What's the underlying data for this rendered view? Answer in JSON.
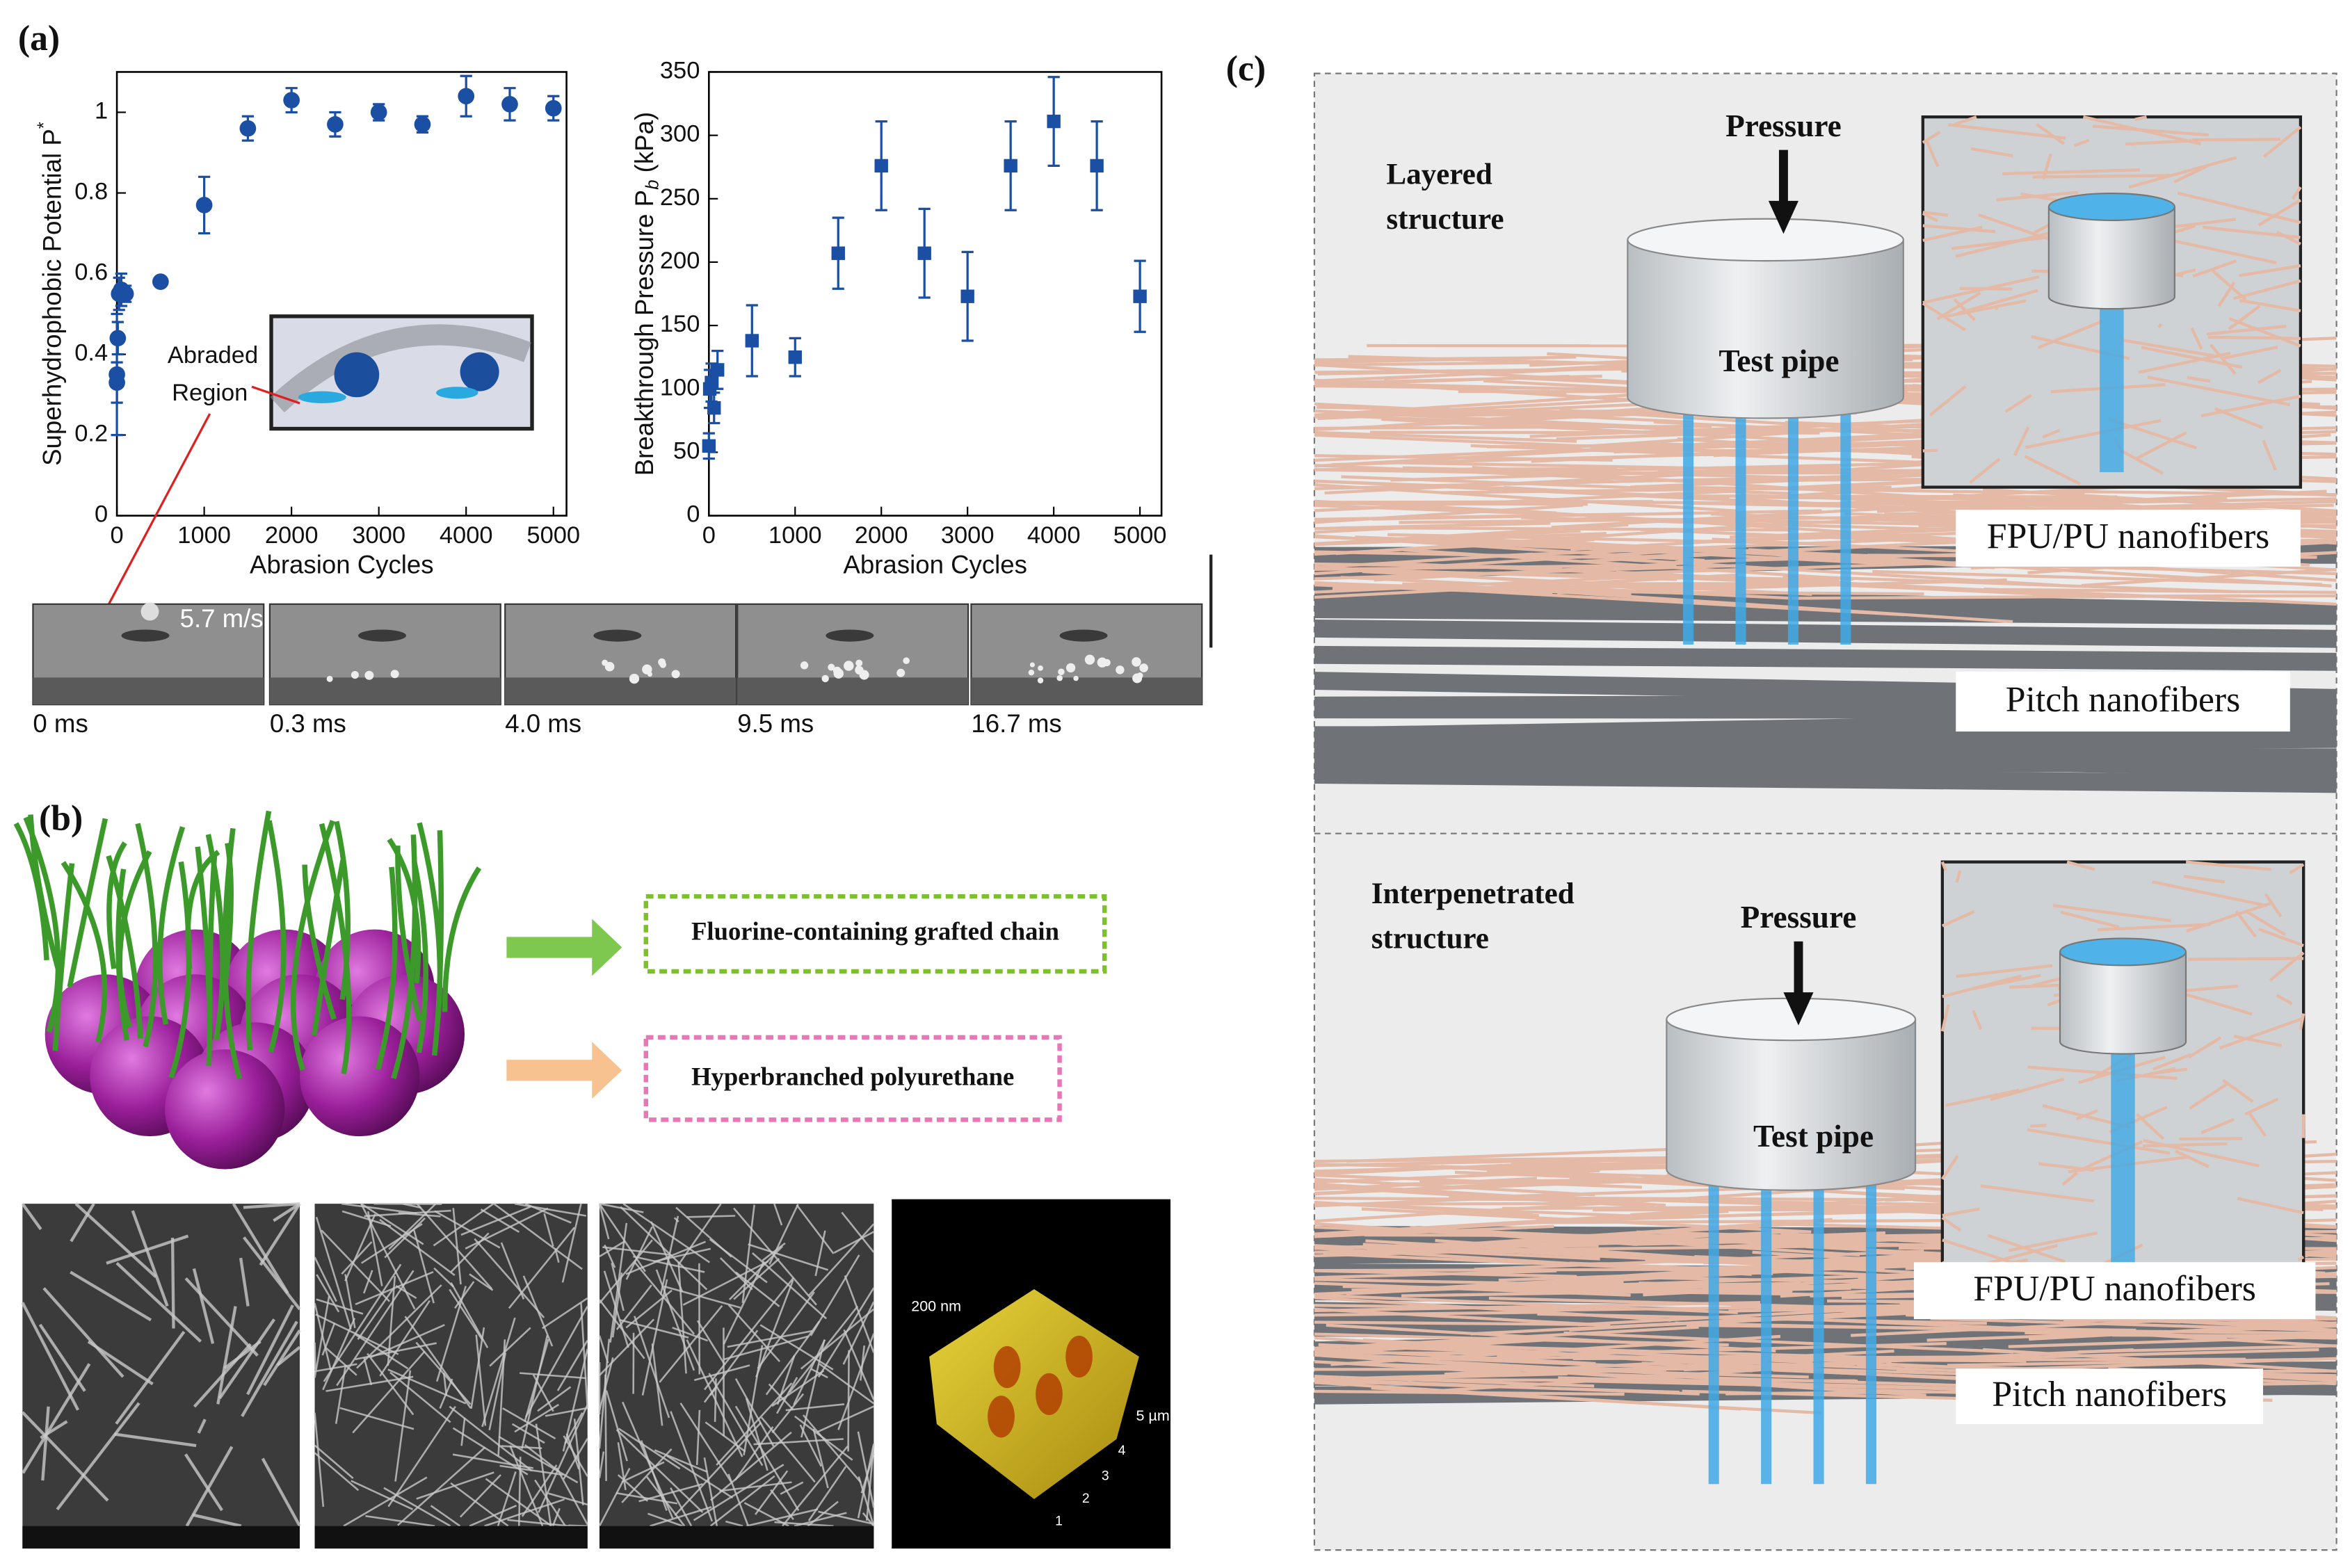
{
  "panels": {
    "a": "(a)",
    "b": "(b)",
    "c": "(c)"
  },
  "chart_data": [
    {
      "type": "scatter",
      "y_label": "Superhydrophobic Potential P",
      "y_label_sup": "*",
      "x_label": "Abrasion Cycles",
      "x": [
        0,
        0,
        10,
        25,
        50,
        100,
        500,
        1000,
        1500,
        2000,
        2500,
        3000,
        3500,
        4000,
        4500,
        5000
      ],
      "values": [
        0.35,
        0.33,
        0.44,
        0.55,
        0.56,
        0.55,
        0.58,
        0.77,
        0.96,
        1.03,
        0.97,
        1.0,
        0.97,
        1.04,
        1.02,
        1.01
      ],
      "errors": [
        0.15,
        0.05,
        0.04,
        0.04,
        0.04,
        0.02,
        0.01,
        0.07,
        0.03,
        0.03,
        0.03,
        0.02,
        0.02,
        0.05,
        0.04,
        0.03
      ],
      "color": "#1a4fa3",
      "marker": "circle",
      "xlim": [
        0,
        5150
      ],
      "ylim": [
        0,
        1.1
      ],
      "xticks": [
        0,
        1000,
        2000,
        3000,
        4000,
        5000
      ],
      "yticks": [
        0,
        0.2,
        0.4,
        0.6,
        0.8,
        1
      ]
    },
    {
      "type": "scatter",
      "y_label": "Breakthrough Pressure P",
      "y_label_sub": "b",
      "y_label_unit": " (kPa)",
      "x_label": "Abrasion Cycles",
      "x": [
        0,
        10,
        30,
        60,
        100,
        500,
        1000,
        1500,
        2000,
        2500,
        3000,
        3500,
        4000,
        4500,
        5000
      ],
      "values": [
        55,
        100,
        105,
        85,
        115,
        138,
        125,
        207,
        276,
        207,
        173,
        276,
        311,
        276,
        173
      ],
      "errors": [
        10,
        15,
        15,
        12,
        15,
        28,
        15,
        28,
        35,
        35,
        35,
        35,
        35,
        35,
        28
      ],
      "color": "#1a4fa3",
      "marker": "square",
      "xlim": [
        0,
        5250
      ],
      "ylim": [
        0,
        350
      ],
      "xticks": [
        0,
        1000,
        2000,
        3000,
        4000,
        5000
      ],
      "yticks": [
        0,
        50,
        100,
        150,
        200,
        250,
        300,
        350
      ]
    }
  ],
  "inset_a": {
    "label_lines": [
      "Abraded",
      "Region"
    ]
  },
  "impact": {
    "speed": "5.7 m/s",
    "frames": [
      "0 ms",
      "0.3 ms",
      "4.0 ms",
      "9.5 ms",
      "16.7 ms"
    ]
  },
  "panel_b": {
    "legend": [
      "Fluorine-containing grafted chain",
      "Hyperbranched polyurethane"
    ],
    "afm": {
      "z_label": "200 nm",
      "x_label": "5 µm",
      "ticks": [
        "1",
        "2",
        "3",
        "4"
      ]
    }
  },
  "panel_c": [
    {
      "title_lines": [
        "Layered",
        "structure"
      ],
      "pressure": "Pressure",
      "pipe": "Test pipe",
      "labels": [
        "FPU/PU nanofibers",
        "Pitch nanofibers"
      ]
    },
    {
      "title_lines": [
        "Interpenetrated",
        "structure"
      ],
      "pressure": "Pressure",
      "pipe": "Test pipe",
      "labels": [
        "FPU/PU nanofibers",
        "Pitch nanofibers"
      ]
    }
  ]
}
